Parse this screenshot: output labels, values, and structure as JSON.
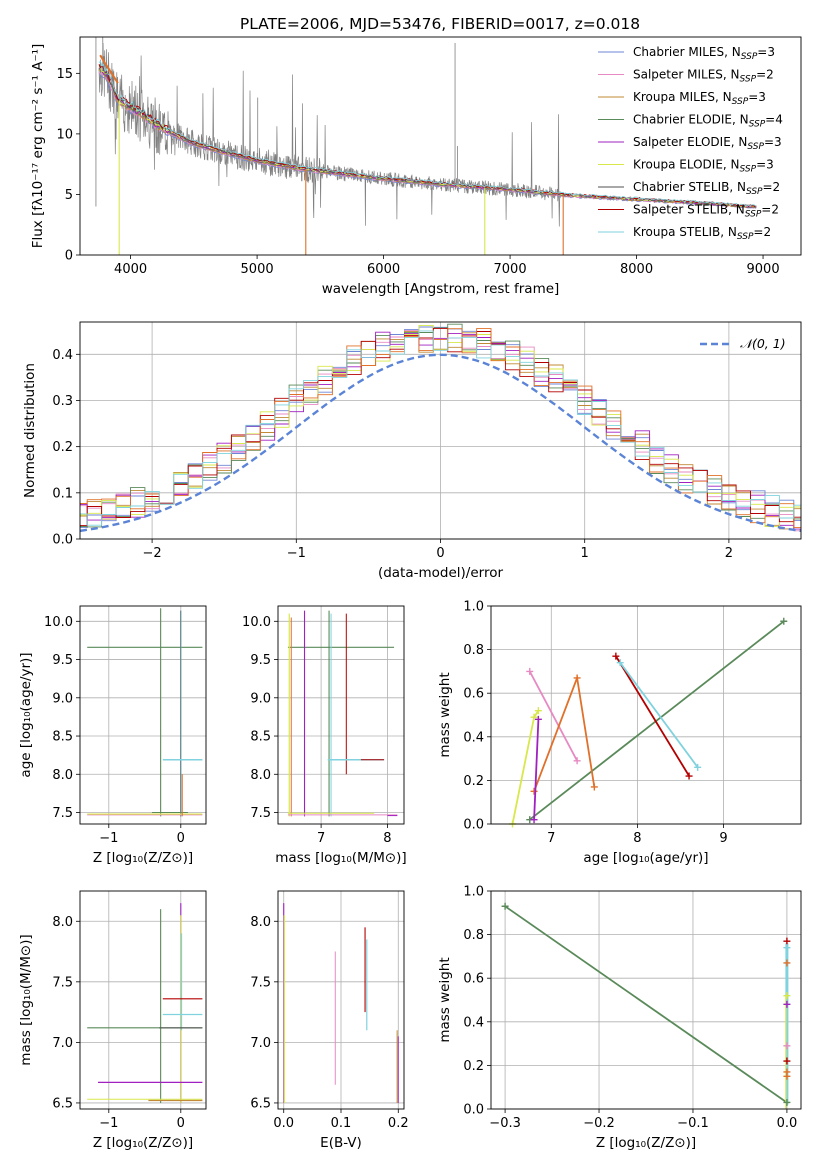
{
  "title": "PLATE=2006, MJD=53476, FIBERID=0017, z=0.018",
  "colors": {
    "chabrier_miles": "#6f86d6",
    "salpeter_miles": "#e78ac3",
    "kroupa_miles": "#c08a36",
    "chabrier_elodie": "#5a8a5a",
    "salpeter_elodie": "#a020c0",
    "kroupa_elodie": "#d8e84a",
    "chabrier_stelib": "#505050",
    "salpeter_stelib": "#b30000",
    "kroupa_stelib": "#7fd2de",
    "spectrum_data": "#808080",
    "gaussian": "#5b84d6",
    "orange": "#e0702a"
  },
  "legend_spectrum": [
    {
      "text": "Chabrier MILES, N",
      "sub": "SSP",
      "suffix": "=3",
      "color_key": "chabrier_miles"
    },
    {
      "text": "Salpeter MILES, N",
      "sub": "SSP",
      "suffix": "=2",
      "color_key": "salpeter_miles"
    },
    {
      "text": "Kroupa MILES, N",
      "sub": "SSP",
      "suffix": "=3",
      "color_key": "kroupa_miles"
    },
    {
      "text": "Chabrier ELODIE, N",
      "sub": "SSP",
      "suffix": "=4",
      "color_key": "chabrier_elodie"
    },
    {
      "text": "Salpeter ELODIE, N",
      "sub": "SSP",
      "suffix": "=3",
      "color_key": "salpeter_elodie"
    },
    {
      "text": "Kroupa ELODIE, N",
      "sub": "SSP",
      "suffix": "=3",
      "color_key": "kroupa_elodie"
    },
    {
      "text": "Chabrier STELIB, N",
      "sub": "SSP",
      "suffix": "=2",
      "color_key": "chabrier_stelib"
    },
    {
      "text": "Salpeter STELIB, N",
      "sub": "SSP",
      "suffix": "=2",
      "color_key": "salpeter_stelib"
    },
    {
      "text": "Kroupa STELIB, N",
      "sub": "SSP",
      "suffix": "=2",
      "color_key": "kroupa_stelib"
    }
  ],
  "chart_data": [
    {
      "id": "spectrum",
      "type": "line",
      "xlabel": "wavelength [Angstrom, rest frame]",
      "ylabel": "Flux [fλ10⁻¹⁷ erg cm⁻² s⁻¹ A⁻¹]",
      "xlim": [
        3600,
        9300
      ],
      "ylim": [
        0,
        18
      ],
      "xticks": [
        4000,
        5000,
        6000,
        7000,
        8000,
        9000
      ],
      "yticks": [
        0,
        5,
        10,
        15
      ],
      "model_continuum": {
        "x": [
          3750,
          3800,
          3850,
          3900,
          4000,
          4100,
          4200,
          4300,
          4500,
          4700,
          5000,
          5300,
          5600,
          6000,
          6500,
          7000,
          7500,
          8000,
          8500,
          8900
        ],
        "y": [
          15.5,
          15.0,
          14.0,
          12.8,
          12.2,
          11.6,
          10.8,
          10.2,
          9.2,
          8.6,
          7.8,
          7.2,
          6.8,
          6.3,
          5.8,
          5.4,
          4.9,
          4.6,
          4.3,
          4.0
        ]
      }
    },
    {
      "id": "residuals",
      "type": "line",
      "xlabel": "(data-model)/error",
      "ylabel": "Normed distribution",
      "xlim": [
        -2.5,
        2.5
      ],
      "ylim": [
        0,
        0.47
      ],
      "xticks": [
        -2,
        -1,
        0,
        1,
        2
      ],
      "yticks": [
        0.0,
        0.1,
        0.2,
        0.3,
        0.4
      ],
      "legend": "𝒩(0, 1)",
      "grid": true
    },
    {
      "id": "age-vs-Z",
      "type": "scatter",
      "xlabel": "Z [log₁₀(Z/Z⊙)]",
      "ylabel": "age [log₁₀(age/yr)]",
      "xlim": [
        -1.4,
        0.35
      ],
      "ylim": [
        7.35,
        10.2
      ],
      "xticks": [
        -1,
        0
      ],
      "yticks": [
        7.5,
        8.0,
        8.5,
        9.0,
        9.5,
        10.0
      ]
    },
    {
      "id": "age-vs-mass",
      "type": "scatter",
      "xlabel": "mass [log₁₀(M/M⊙)]",
      "ylabel": "",
      "xlim": [
        6.35,
        8.25
      ],
      "ylim": [
        7.35,
        10.2
      ],
      "xticks": [
        7,
        8
      ],
      "yticks": [
        7.5,
        8.0,
        8.5,
        9.0,
        9.5,
        10.0
      ]
    },
    {
      "id": "weight-vs-age",
      "type": "line",
      "xlabel": "age [log₁₀(age/yr)]",
      "ylabel": "mass weight",
      "xlim": [
        6.3,
        9.9
      ],
      "ylim": [
        0,
        1
      ],
      "xticks": [
        7,
        8,
        9
      ],
      "yticks": [
        0.0,
        0.2,
        0.4,
        0.6,
        0.8,
        1.0
      ],
      "series": [
        {
          "color_key": "chabrier_elodie",
          "x": [
            6.75,
            9.7
          ],
          "y": [
            0.02,
            0.93
          ]
        },
        {
          "color_key": "salpeter_miles",
          "x": [
            6.75,
            7.3
          ],
          "y": [
            0.7,
            0.29
          ]
        },
        {
          "color_key": "orange",
          "x": [
            6.8,
            7.3,
            7.5
          ],
          "y": [
            0.15,
            0.67,
            0.17
          ]
        },
        {
          "color_key": "salpeter_elodie",
          "x": [
            6.8,
            6.85
          ],
          "y": [
            0.02,
            0.48
          ]
        },
        {
          "color_key": "kroupa_elodie",
          "x": [
            6.55,
            6.8,
            6.85
          ],
          "y": [
            0.0,
            0.49,
            0.52
          ]
        },
        {
          "color_key": "salpeter_stelib",
          "x": [
            7.75,
            8.6
          ],
          "y": [
            0.77,
            0.22
          ]
        },
        {
          "color_key": "kroupa_stelib",
          "x": [
            7.8,
            8.7
          ],
          "y": [
            0.74,
            0.26
          ]
        }
      ]
    },
    {
      "id": "mass-vs-Z",
      "type": "scatter",
      "xlabel": "Z [log₁₀(Z/Z⊙)]",
      "ylabel": "mass [log₁₀(M/M⊙)]",
      "xlim": [
        -1.4,
        0.35
      ],
      "ylim": [
        6.45,
        8.25
      ],
      "xticks": [
        -1,
        0
      ],
      "yticks": [
        6.5,
        7.0,
        7.5,
        8.0
      ]
    },
    {
      "id": "mass-vs-ebv",
      "type": "scatter",
      "xlabel": "E(B-V)",
      "ylabel": "",
      "xlim": [
        -0.01,
        0.21
      ],
      "ylim": [
        6.45,
        8.25
      ],
      "xticks": [
        0.0,
        0.1,
        0.2
      ],
      "yticks": [
        6.5,
        7.0,
        7.5,
        8.0
      ]
    },
    {
      "id": "weight-vs-Z",
      "type": "line",
      "xlabel": "Z [log₁₀(Z/Z⊙)]",
      "ylabel": "mass weight",
      "xlim": [
        -0.315,
        0.015
      ],
      "ylim": [
        0,
        1
      ],
      "xticks": [
        -0.3,
        -0.2,
        -0.1,
        0.0
      ],
      "yticks": [
        0.0,
        0.2,
        0.4,
        0.6,
        0.8,
        1.0
      ],
      "series": [
        {
          "color_key": "chabrier_elodie",
          "x": [
            -0.3,
            0.0
          ],
          "y": [
            0.93,
            0.03
          ]
        }
      ]
    }
  ]
}
